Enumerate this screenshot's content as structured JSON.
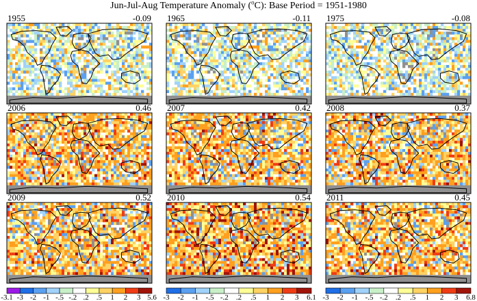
{
  "title": {
    "prefix": "Jun-Jul-Aug Temperature Anomaly (",
    "sup": "o",
    "suffix": "C): Base Period = 1951-1980"
  },
  "panels": [
    {
      "year": "1955",
      "anomaly": "-0.09",
      "style": "cool"
    },
    {
      "year": "1965",
      "anomaly": "-0.11",
      "style": "cool"
    },
    {
      "year": "1975",
      "anomaly": "-0.08",
      "style": "cool"
    },
    {
      "year": "2006",
      "anomaly": "0.46",
      "style": "warm"
    },
    {
      "year": "2007",
      "anomaly": "0.42",
      "style": "warm"
    },
    {
      "year": "2008",
      "anomaly": "0.37",
      "style": "warm"
    },
    {
      "year": "2009",
      "anomaly": "0.52",
      "style": "warm"
    },
    {
      "year": "2010",
      "anomaly": "0.54",
      "style": "hot"
    },
    {
      "year": "2011",
      "anomaly": "0.45",
      "style": "warm"
    }
  ],
  "colorbars": [
    {
      "labels": [
        "-3.1",
        "-3",
        "-2",
        "-1",
        "-.5",
        "-.2",
        ".2",
        ".5",
        "1",
        "2",
        "3",
        "5.6"
      ]
    },
    {
      "labels": [
        "-3",
        "-2",
        "-1",
        "-.5",
        "-.2",
        ".2",
        ".5",
        "1",
        "2",
        "3",
        "6.1"
      ]
    },
    {
      "labels": [
        "-3",
        "-2",
        "-1",
        "-.5",
        "-.2",
        ".2",
        ".5",
        "1",
        "2",
        "3",
        "6.8"
      ]
    }
  ],
  "colors": {
    "scale": [
      "#9b19e6",
      "#1e6ee6",
      "#5aa0f0",
      "#a0d2fa",
      "#c8f0c8",
      "#ffffff",
      "#ffff96",
      "#ffd264",
      "#ffa01e",
      "#f03c14",
      "#a0140a"
    ],
    "no_data": "#909090",
    "coast": "#000000"
  }
}
